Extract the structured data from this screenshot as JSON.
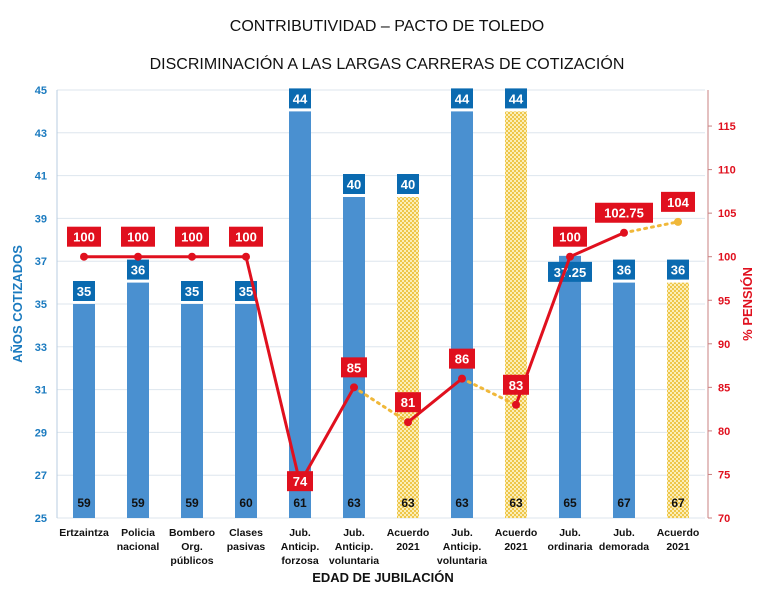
{
  "chart_data": {
    "type": "bar",
    "title": "CONTRIBUTIVIDAD – PACTO DE TOLEDO",
    "subtitle": "DISCRIMINACIÓN A LAS LARGAS CARRERAS DE COTIZACIÓN",
    "xlabel": "EDAD DE JUBILACIÓN",
    "ylabel": "AÑOS COTIZADOS",
    "y2label": "% PENSIÓN",
    "ylim": [
      25,
      45
    ],
    "yticks": [
      25,
      27,
      29,
      31,
      33,
      35,
      37,
      39,
      41,
      43,
      45
    ],
    "y2lim": [
      70,
      119
    ],
    "y2ticks": [
      70,
      75,
      80,
      85,
      90,
      95,
      100,
      105,
      110,
      115
    ],
    "grid": true,
    "categories": [
      "Ertzaintza",
      "Policia nacional",
      "Bombero Org. públicos",
      "Clases pasivas",
      "Jub. Anticip. forzosa",
      "Jub. Anticip. voluntaria",
      "Acuerdo 2021",
      "Jub. Anticip. voluntaria",
      "Acuerdo 2021",
      "Jub. ordinaria",
      "Jub. demorada",
      "Acuerdo 2021"
    ],
    "category_lines": [
      [
        "Ertzaintza"
      ],
      [
        "Policia",
        "nacional"
      ],
      [
        "Bombero",
        "Org.",
        "públicos"
      ],
      [
        "Clases",
        "pasivas"
      ],
      [
        "Jub.",
        "Anticip.",
        "forzosa"
      ],
      [
        "Jub.",
        "Anticip.",
        "voluntaria"
      ],
      [
        "Acuerdo",
        "2021"
      ],
      [
        "Jub.",
        "Anticip.",
        "voluntaria"
      ],
      [
        "Acuerdo",
        "2021"
      ],
      [
        "Jub.",
        "ordinaria"
      ],
      [
        "Jub.",
        "demorada"
      ],
      [
        "Acuerdo",
        "2021"
      ]
    ],
    "ages": [
      "59",
      "59",
      "59",
      "60",
      "61",
      "63",
      "63",
      "63",
      "63",
      "65",
      "67",
      "67"
    ],
    "series": [
      {
        "type": "bar",
        "axis": "left",
        "values": [
          35,
          36,
          35,
          35,
          44,
          40,
          40,
          44,
          44,
          37.25,
          36,
          36
        ],
        "labels": [
          "35",
          "36",
          "35",
          "35",
          "44",
          "40",
          "40",
          "44",
          "44",
          "37.25",
          "36",
          "36"
        ],
        "pattern": [
          "solid",
          "solid",
          "solid",
          "solid",
          "solid",
          "solid",
          "checker",
          "solid",
          "checker",
          "solid",
          "solid",
          "checker"
        ]
      },
      {
        "type": "line",
        "axis": "right",
        "values": [
          100,
          100,
          100,
          100,
          74,
          85,
          81,
          86,
          83,
          100,
          102.75,
          104
        ],
        "labels": [
          "100",
          "100",
          "100",
          "100",
          "74",
          "85",
          "81",
          "86",
          "83",
          "100",
          "102.75",
          "104"
        ],
        "segment_styles": [
          "solid",
          "solid",
          "solid",
          "solid",
          "solid",
          "dotted",
          "solid",
          "dotted",
          "solid",
          "solid",
          "dotted"
        ]
      }
    ],
    "colors": {
      "bar": "#4a90d0",
      "bar_label": "#0a6ab0",
      "checker": "#f2cf5b",
      "line": "#e0101e",
      "dotted": "#f0b83a",
      "left_axis": "#1a7abf",
      "right_axis": "#e0101e"
    }
  }
}
